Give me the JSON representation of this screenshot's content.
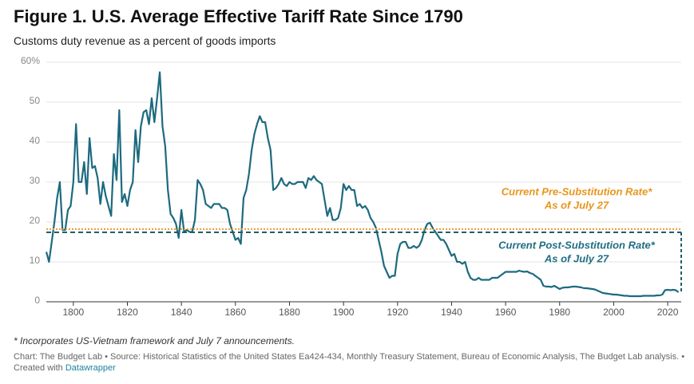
{
  "chart_data": {
    "type": "line",
    "title": "Figure 1. U.S. Average Effective Tariff Rate Since 1790",
    "subtitle": "Customs duty revenue as a percent of goods imports",
    "footnote": "* Incorporates US-Vietnam framework and July 7 announcements.",
    "source": "Chart: The Budget Lab • Source: Historical Statistics of the United States Ea424-434, Monthly Treasury Statement, Bureau of Economic Analysis, The Budget Lab analysis. •",
    "credit": "Created with",
    "credit_link": "Datawrapper",
    "xlim": [
      1790,
      2025
    ],
    "ylim": [
      0,
      60
    ],
    "xticks": [
      1800,
      1820,
      1840,
      1860,
      1880,
      1900,
      1920,
      1940,
      1960,
      1980,
      2000,
      2020
    ],
    "yticks": [
      0,
      10,
      20,
      30,
      40,
      50,
      {
        "value": 60,
        "label": "60%"
      }
    ],
    "grid": true,
    "x": [
      1790,
      1791,
      1792,
      1793,
      1794,
      1795,
      1796,
      1797,
      1798,
      1799,
      1800,
      1801,
      1802,
      1803,
      1804,
      1805,
      1806,
      1807,
      1808,
      1809,
      1810,
      1811,
      1812,
      1813,
      1814,
      1815,
      1816,
      1817,
      1818,
      1819,
      1820,
      1821,
      1822,
      1823,
      1824,
      1825,
      1826,
      1827,
      1828,
      1829,
      1830,
      1831,
      1832,
      1833,
      1834,
      1835,
      1836,
      1837,
      1838,
      1839,
      1840,
      1841,
      1842,
      1843,
      1844,
      1845,
      1846,
      1847,
      1848,
      1849,
      1850,
      1851,
      1852,
      1853,
      1854,
      1855,
      1856,
      1857,
      1858,
      1859,
      1860,
      1861,
      1862,
      1863,
      1864,
      1865,
      1866,
      1867,
      1868,
      1869,
      1870,
      1871,
      1872,
      1873,
      1874,
      1875,
      1876,
      1877,
      1878,
      1879,
      1880,
      1881,
      1882,
      1883,
      1884,
      1885,
      1886,
      1887,
      1888,
      1889,
      1890,
      1891,
      1892,
      1893,
      1894,
      1895,
      1896,
      1897,
      1898,
      1899,
      1900,
      1901,
      1902,
      1903,
      1904,
      1905,
      1906,
      1907,
      1908,
      1909,
      1910,
      1911,
      1912,
      1913,
      1914,
      1915,
      1916,
      1917,
      1918,
      1919,
      1920,
      1921,
      1922,
      1923,
      1924,
      1925,
      1926,
      1927,
      1928,
      1929,
      1930,
      1931,
      1932,
      1933,
      1934,
      1935,
      1936,
      1937,
      1938,
      1939,
      1940,
      1941,
      1942,
      1943,
      1944,
      1945,
      1946,
      1947,
      1948,
      1949,
      1950,
      1951,
      1952,
      1953,
      1954,
      1955,
      1956,
      1957,
      1958,
      1959,
      1960,
      1961,
      1962,
      1963,
      1964,
      1965,
      1966,
      1967,
      1968,
      1969,
      1970,
      1971,
      1972,
      1973,
      1974,
      1975,
      1976,
      1977,
      1978,
      1979,
      1980,
      1981,
      1982,
      1983,
      1984,
      1985,
      1986,
      1987,
      1988,
      1989,
      1990,
      1991,
      1992,
      1993,
      1994,
      1995,
      1996,
      1997,
      1998,
      1999,
      2000,
      2001,
      2002,
      2003,
      2004,
      2005,
      2006,
      2007,
      2008,
      2009,
      2010,
      2011,
      2012,
      2013,
      2014,
      2015,
      2016,
      2017,
      2018,
      2019,
      2020,
      2021,
      2022,
      2023,
      2024
    ],
    "series": [
      {
        "name": "Average effective tariff rate",
        "color": "#1d6a7f",
        "values": [
          12.5,
          10,
          15,
          20,
          26,
          30,
          18,
          18,
          23,
          24,
          30,
          44.5,
          30,
          30,
          35,
          27,
          41,
          33.5,
          34,
          31,
          24.5,
          30,
          26.5,
          24,
          21.5,
          37,
          30.5,
          48,
          25,
          27,
          24,
          28,
          30,
          43,
          35,
          44,
          47.5,
          48,
          44.5,
          51,
          45,
          51,
          57.5,
          44,
          39,
          28,
          22,
          21,
          19.5,
          16,
          23,
          17.5,
          18,
          17.5,
          17.5,
          20.5,
          30.5,
          29.5,
          28,
          24.5,
          24,
          23.5,
          24.5,
          24.5,
          24.5,
          23.5,
          23.5,
          23,
          19.5,
          17.5,
          15.5,
          16,
          14.5,
          26,
          28,
          32,
          38,
          42,
          44.5,
          46.5,
          45,
          45,
          41,
          38,
          28,
          28.5,
          29.5,
          31,
          29.5,
          29,
          30,
          29.5,
          29.5,
          30,
          30,
          30,
          28.5,
          31,
          30.5,
          31.5,
          30.5,
          30,
          29.5,
          25.5,
          21.5,
          23.5,
          20.5,
          20.5,
          21,
          23.5,
          29.5,
          28,
          29,
          28,
          28,
          24,
          24.5,
          23.5,
          24,
          23,
          21,
          20,
          18.5,
          15.5,
          12.5,
          9,
          7.5,
          6,
          6.5,
          6.5,
          12,
          14.5,
          15,
          15,
          13.5,
          13.5,
          14,
          13.5,
          14,
          15.5,
          18,
          19.5,
          19.8,
          18.5,
          17.5,
          16.5,
          15.5,
          15.5,
          14.5,
          13,
          11.5,
          12,
          10,
          10,
          9.5,
          10,
          7.5,
          6,
          5.5,
          5.5,
          6,
          5.5,
          5.5,
          5.5,
          5.5,
          6,
          6,
          6,
          6.5,
          7,
          7.5,
          7.5,
          7.5,
          7.5,
          7.5,
          7.8,
          7.6,
          7.5,
          7.6,
          7.2,
          7,
          6.5,
          6,
          5.5,
          4,
          3.8,
          3.8,
          3.7,
          4,
          3.6,
          3.2,
          3.5,
          3.6,
          3.6,
          3.7,
          3.8,
          3.8,
          3.7,
          3.6,
          3.4,
          3.4,
          3.3,
          3.2,
          3.1,
          2.8,
          2.5,
          2.2,
          2.1,
          2,
          1.9,
          1.8,
          1.8,
          1.7,
          1.6,
          1.5,
          1.5,
          1.4,
          1.4,
          1.4,
          1.4,
          1.4,
          1.5,
          1.5,
          1.5,
          1.5,
          1.5,
          1.6,
          1.6,
          1.8,
          2.9,
          3,
          2.9,
          3,
          2.9,
          2.4
        ]
      }
    ],
    "reference_lines": [
      {
        "value": 18.2,
        "color": "#f0a030",
        "style": "dotted",
        "label": [
          "Current Pre-Substitution Rate*",
          "As of July 27"
        ]
      },
      {
        "value": 17.4,
        "color": "#1f5d6e",
        "style": "dashed",
        "label": [
          "Current Post-Substitution Rate*",
          "As of July 27"
        ]
      }
    ]
  }
}
